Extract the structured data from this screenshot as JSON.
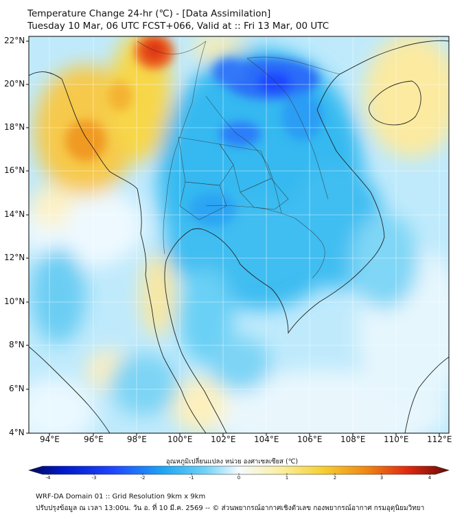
{
  "header": {
    "title_line1": "Temperature Change 24-hr (℃) - [Data Assimilation]",
    "title_line2": "Tuesday 10 Mar, 06 UTC FCST+066, Valid at :: Fri 13 Mar, 00 UTC"
  },
  "axes": {
    "lat_labels": [
      "22°N",
      "20°N",
      "18°N",
      "16°N",
      "14°N",
      "12°N",
      "10°N",
      "8°N",
      "6°N",
      "4°N"
    ],
    "lon_labels": [
      "94°E",
      "96°E",
      "98°E",
      "100°E",
      "102°E",
      "104°E",
      "106°E",
      "108°E",
      "110°E",
      "112°E"
    ]
  },
  "colorbar": {
    "label": "อุณหภูมิเปลี่ยนแปลง หน่วย องศาเซลเซียส (℃)",
    "ticks": [
      "-4",
      "-3",
      "-2",
      "-1",
      "0",
      "1",
      "2",
      "3",
      "4"
    ],
    "min": -4,
    "max": 4
  },
  "footer": {
    "line1": "WRF-DA Domain 01 :: Grid Resolution 9km x 9km",
    "line2": "ปรับปรุงข้อมูล ณ เวลา 13:00น. วัน อ. ที่ 10 มี.ค. 2569 -- © ส่วนพยากรณ์อากาศเชิงตัวเลข กองพยากรณ์อากาศ กรมอุตุนิยมวิทยา"
  },
  "colors": {
    "cold_strong": "#1f46ff",
    "cold": "#2fb7ef",
    "cool": "#a6e4fb",
    "neutral": "#f7fbff",
    "warm": "#f7d33c",
    "hot": "#f08a14",
    "very_hot": "#e02a10",
    "coast": "#222222"
  }
}
